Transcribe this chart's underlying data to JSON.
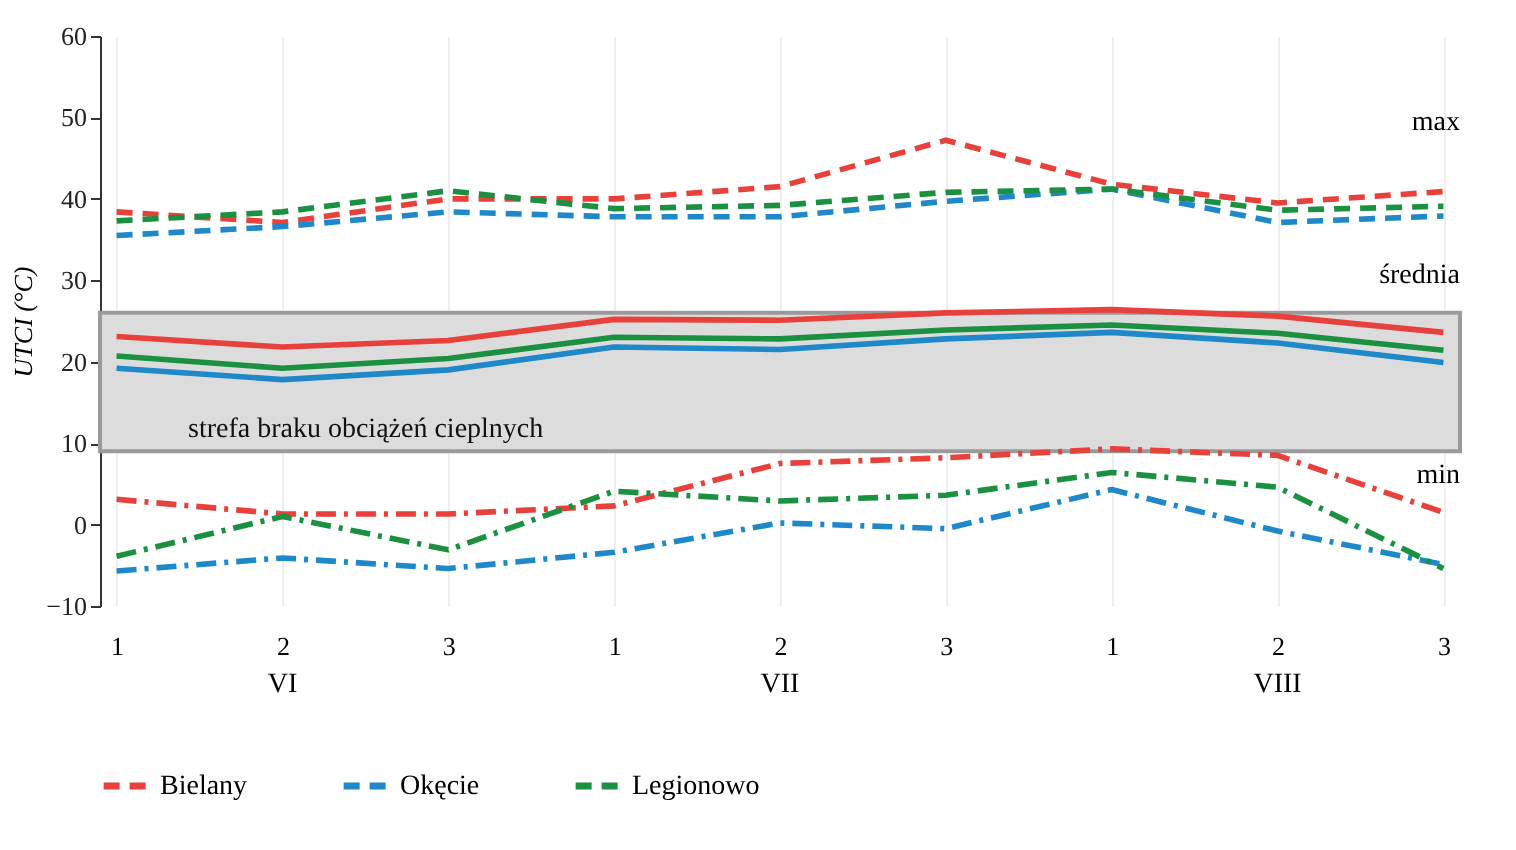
{
  "chart_data": {
    "type": "line",
    "ylabel": "UTCI (°C)",
    "categories": [
      "1",
      "2",
      "3",
      "1",
      "2",
      "3",
      "1",
      "2",
      "3"
    ],
    "ylim": [
      -10,
      60
    ],
    "yticks": [
      -10,
      0,
      10,
      20,
      30,
      40,
      50,
      60
    ],
    "grid": "x",
    "legend": "bottom",
    "series": [
      {
        "name": "Bielany",
        "color": "#e8413c",
        "line_style": "dashed",
        "values": [
          38.4,
          37.1,
          40,
          40,
          41.5,
          47.2,
          41.8,
          39.5,
          40.9
        ]
      },
      {
        "name": "Okęcie",
        "color": "#1e88c8",
        "line_style": "dashed",
        "values": [
          35.5,
          36.6,
          38.4,
          37.8,
          37.8,
          39.7,
          41.2,
          37.1,
          37.9
        ]
      },
      {
        "name": "Legionowo",
        "color": "#1a9040",
        "line_style": "dashed",
        "values": [
          37.3,
          38.4,
          41,
          38.8,
          39.2,
          40.8,
          41.2,
          38.6,
          39.1
        ]
      },
      {
        "color": "#e8413c",
        "line_style": "solid",
        "values": [
          23.1,
          21.8,
          22.6,
          25.2,
          25.1,
          26,
          26.4,
          25.6,
          23.6
        ]
      },
      {
        "color": "#1e88c8",
        "line_style": "solid",
        "values": [
          19.2,
          17.8,
          19,
          21.8,
          21.5,
          22.8,
          23.6,
          22.3,
          19.9
        ]
      },
      {
        "color": "#1a9040",
        "line_style": "solid",
        "values": [
          20.7,
          19.2,
          20.4,
          23,
          22.8,
          23.9,
          24.5,
          23.5,
          21.4
        ]
      },
      {
        "color": "#e8413c",
        "line_style": "dashdot",
        "values": [
          3.1,
          1.3,
          1.3,
          2.3,
          7.5,
          8.2,
          9.3,
          8.5,
          1.5
        ]
      },
      {
        "color": "#1e88c8",
        "line_style": "dashdot",
        "values": [
          -5.7,
          -4.1,
          -5.4,
          -3.4,
          0.2,
          -0.5,
          4.3,
          -0.8,
          -4.9
        ]
      },
      {
        "color": "#1a9040",
        "line_style": "dashdot",
        "values": [
          -3.9,
          1,
          -3.1,
          4.1,
          2.9,
          3.6,
          6.4,
          4.6,
          -5.4
        ]
      }
    ],
    "bands": [
      {
        "axis": "y",
        "from": 9,
        "to": 26,
        "label": "strefa braku obciążeń cieplnych",
        "color": "#dcdcdc"
      }
    ],
    "annotations": [
      "VI",
      "VII",
      "VIII",
      "max",
      "średnia",
      "min"
    ]
  }
}
